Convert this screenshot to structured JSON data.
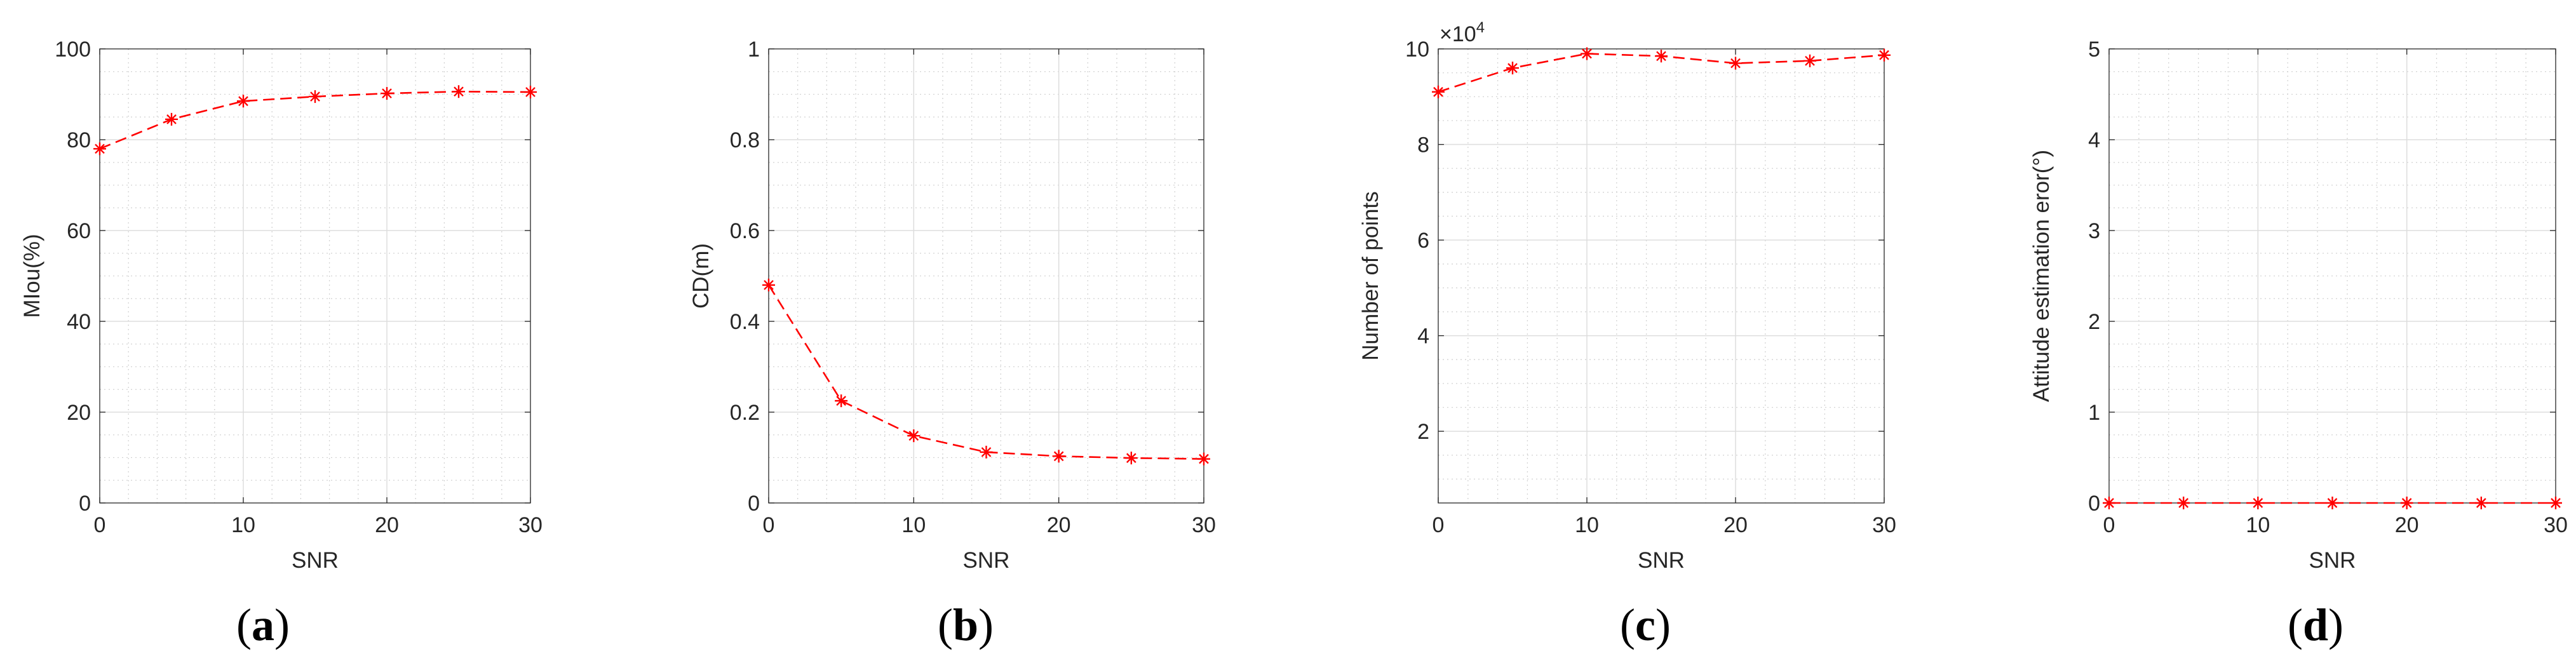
{
  "colors": {
    "series": "#ff0000",
    "axis": "#262626",
    "grid": "#dddddd",
    "background": "#ffffff"
  },
  "chart_data": [
    {
      "type": "line",
      "panel": "a",
      "panel_label": {
        "open": "(",
        "letter": "a",
        "close": ")"
      },
      "title": "",
      "xlabel": "SNR",
      "ylabel": "MIou(%)",
      "x": [
        0,
        5,
        10,
        15,
        20,
        25,
        30
      ],
      "series": [
        {
          "name": "MIou",
          "values": [
            78,
            84.5,
            88.5,
            89.5,
            90.2,
            90.6,
            90.5
          ]
        }
      ],
      "xlim": [
        0,
        30
      ],
      "ylim": [
        0,
        100
      ],
      "xticks": [
        0,
        10,
        20,
        30
      ],
      "yticks": [
        0,
        20,
        40,
        60,
        80,
        100
      ],
      "xtick_labels": [
        "0",
        "10",
        "20",
        "30"
      ],
      "ytick_labels": [
        "0",
        "20",
        "40",
        "60",
        "80",
        "100"
      ],
      "x_minor_step": 2,
      "y_minor_step": 5,
      "grid": true,
      "marker": "asterisk",
      "line_style": "dashed"
    },
    {
      "type": "line",
      "panel": "b",
      "panel_label": {
        "open": "(",
        "letter": "b",
        "close": ")"
      },
      "title": "",
      "xlabel": "SNR",
      "ylabel": "CD(m)",
      "x": [
        0,
        5,
        10,
        15,
        20,
        25,
        30
      ],
      "series": [
        {
          "name": "CD",
          "values": [
            0.48,
            0.225,
            0.148,
            0.112,
            0.103,
            0.099,
            0.097
          ]
        }
      ],
      "xlim": [
        0,
        30
      ],
      "ylim": [
        0,
        1
      ],
      "xticks": [
        0,
        10,
        20,
        30
      ],
      "yticks": [
        0,
        0.2,
        0.4,
        0.6,
        0.8,
        1
      ],
      "xtick_labels": [
        "0",
        "10",
        "20",
        "30"
      ],
      "ytick_labels": [
        "0",
        "0.2",
        "0.4",
        "0.6",
        "0.8",
        "1"
      ],
      "x_minor_step": 2,
      "y_minor_step": 0.05,
      "grid": true,
      "marker": "asterisk",
      "line_style": "dashed"
    },
    {
      "type": "line",
      "panel": "c",
      "panel_label": {
        "open": "(",
        "letter": "c",
        "close": ")"
      },
      "title": "",
      "xlabel": "SNR",
      "ylabel": "Number of points",
      "exponent_label": {
        "base": "×10",
        "power": "4"
      },
      "x": [
        0,
        5,
        10,
        15,
        20,
        25,
        30
      ],
      "series": [
        {
          "name": "Number of points",
          "values": [
            9.1,
            9.6,
            9.9,
            9.85,
            9.7,
            9.75,
            9.87
          ]
        }
      ],
      "xlim": [
        0,
        30
      ],
      "ylim": [
        0.5,
        10
      ],
      "xticks": [
        0,
        10,
        20,
        30
      ],
      "yticks": [
        2,
        4,
        6,
        8,
        10
      ],
      "xtick_labels": [
        "0",
        "10",
        "20",
        "30"
      ],
      "ytick_labels": [
        "2",
        "4",
        "6",
        "8",
        "10"
      ],
      "x_minor_step": 2,
      "y_minor_step": 0.5,
      "grid": true,
      "marker": "asterisk",
      "line_style": "dashed"
    },
    {
      "type": "line",
      "panel": "d",
      "panel_label": {
        "open": "(",
        "letter": "d",
        "close": ")"
      },
      "title": "",
      "xlabel": "SNR",
      "ylabel": "Attitude estimation eror(°)",
      "x": [
        0,
        5,
        10,
        15,
        20,
        25,
        30
      ],
      "series": [
        {
          "name": "Attitude estimation error",
          "values": [
            0,
            0,
            0,
            0,
            0,
            0,
            0
          ]
        }
      ],
      "xlim": [
        0,
        30
      ],
      "ylim": [
        0,
        5
      ],
      "xticks": [
        0,
        10,
        20,
        30
      ],
      "yticks": [
        0,
        1,
        2,
        3,
        4,
        5
      ],
      "xtick_labels": [
        "0",
        "10",
        "20",
        "30"
      ],
      "ytick_labels": [
        "0",
        "1",
        "2",
        "3",
        "4",
        "5"
      ],
      "x_minor_step": 2,
      "y_minor_step": 0.25,
      "grid": true,
      "marker": "asterisk",
      "line_style": "dashed"
    }
  ]
}
